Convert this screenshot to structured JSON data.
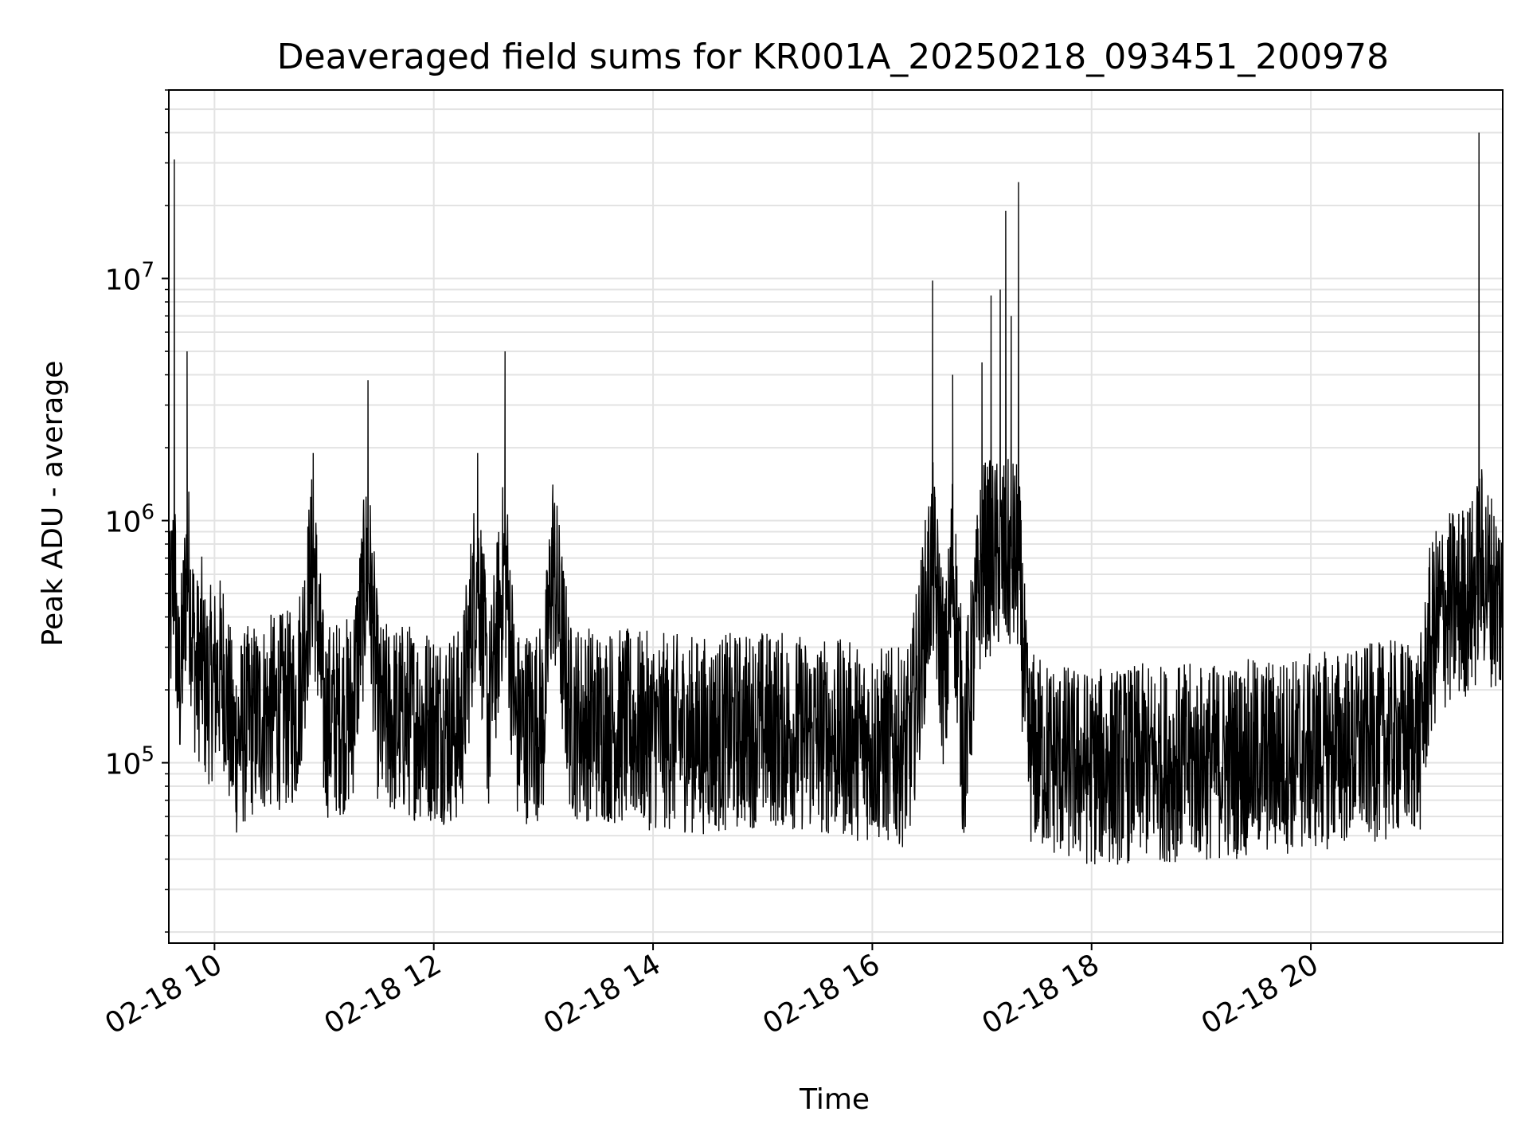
{
  "chart_data": {
    "type": "line",
    "title": "Deaveraged field sums for KR001A_20250218_093451_200978",
    "xlabel": "Time",
    "ylabel": "Peak ADU - average",
    "y_scale": "log",
    "ylim": [
      18000,
      60000000
    ],
    "xlim": [
      "2025-02-18 09:35",
      "2025-02-18 21:45"
    ],
    "x_ticks": [
      {
        "value": "2025-02-18 10:00",
        "label": "02-18 10"
      },
      {
        "value": "2025-02-18 12:00",
        "label": "02-18 12"
      },
      {
        "value": "2025-02-18 14:00",
        "label": "02-18 14"
      },
      {
        "value": "2025-02-18 16:00",
        "label": "02-18 16"
      },
      {
        "value": "2025-02-18 18:00",
        "label": "02-18 18"
      },
      {
        "value": "2025-02-18 20:00",
        "label": "02-18 20"
      }
    ],
    "y_ticks": [
      {
        "value": 100000,
        "base": "10",
        "exp": "5"
      },
      {
        "value": 1000000,
        "base": "10",
        "exp": "6"
      },
      {
        "value": 10000000,
        "base": "10",
        "exp": "7"
      }
    ],
    "grid": true,
    "line_color": "#000000",
    "series": [
      {
        "x": [
          "2025-02-18 09:35",
          "2025-02-18 09:38",
          "2025-02-18 09:40",
          "2025-02-18 09:42",
          "2025-02-18 09:45",
          "2025-02-18 09:50",
          "2025-02-18 09:53",
          "2025-02-18 09:55",
          "2025-02-18 10:00",
          "2025-02-18 10:05",
          "2025-02-18 10:10",
          "2025-02-18 10:20",
          "2025-02-18 10:30",
          "2025-02-18 10:45",
          "2025-02-18 10:54",
          "2025-02-18 11:00",
          "2025-02-18 11:15",
          "2025-02-18 11:24",
          "2025-02-18 11:30",
          "2025-02-18 11:45",
          "2025-02-18 12:00",
          "2025-02-18 12:15",
          "2025-02-18 12:24",
          "2025-02-18 12:30",
          "2025-02-18 12:39",
          "2025-02-18 12:45",
          "2025-02-18 13:00",
          "2025-02-18 13:05",
          "2025-02-18 13:15",
          "2025-02-18 13:30",
          "2025-02-18 14:00",
          "2025-02-18 14:30",
          "2025-02-18 15:00",
          "2025-02-18 15:30",
          "2025-02-18 16:00",
          "2025-02-18 16:20",
          "2025-02-18 16:33",
          "2025-02-18 16:40",
          "2025-02-18 16:44",
          "2025-02-18 16:50",
          "2025-02-18 17:00",
          "2025-02-18 17:05",
          "2025-02-18 17:10",
          "2025-02-18 17:13",
          "2025-02-18 17:16",
          "2025-02-18 17:20",
          "2025-02-18 17:25",
          "2025-02-18 17:30",
          "2025-02-18 17:45",
          "2025-02-18 18:00",
          "2025-02-18 18:30",
          "2025-02-18 19:00",
          "2025-02-18 19:30",
          "2025-02-18 20:00",
          "2025-02-18 20:30",
          "2025-02-18 21:00",
          "2025-02-18 21:05",
          "2025-02-18 21:10",
          "2025-02-18 21:20",
          "2025-02-18 21:30",
          "2025-02-18 21:32",
          "2025-02-18 21:40",
          "2025-02-18 21:45"
        ],
        "y": [
          300000,
          31000000,
          200000,
          250000,
          5000000,
          230000,
          280000,
          200000,
          220000,
          240000,
          120000,
          150000,
          160000,
          170000,
          1900000,
          150000,
          160000,
          3800000,
          150000,
          150000,
          145000,
          140000,
          1900000,
          150000,
          5000000,
          140000,
          150000,
          1200000,
          150000,
          145000,
          135000,
          130000,
          140000,
          130000,
          120000,
          115000,
          9800000,
          200000,
          4000000,
          110000,
          4500000,
          8500000,
          9000000,
          19000000,
          7000000,
          25000000,
          120000,
          110000,
          100000,
          95000,
          100000,
          100000,
          105000,
          110000,
          120000,
          130000,
          300000,
          400000,
          450000,
          500000,
          40000000,
          500000,
          450000
        ]
      }
    ]
  }
}
